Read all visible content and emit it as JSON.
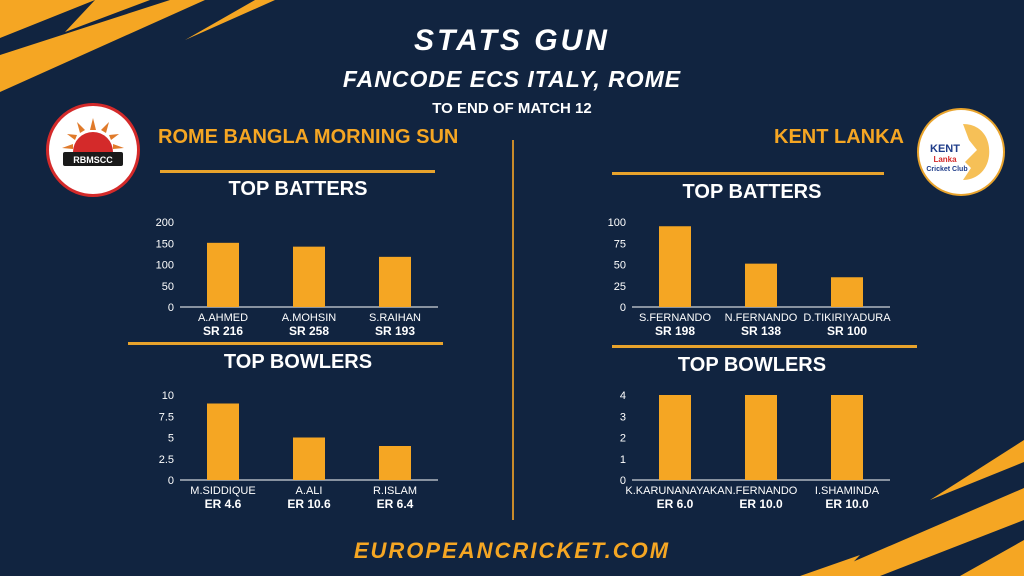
{
  "header": {
    "title": "STATS GUN",
    "subtitle": "FANCODE ECS ITALY, ROME",
    "note": "TO END OF MATCH 12"
  },
  "teams": {
    "left": {
      "name": "ROME BANGLA MORNING SUN",
      "logo_text": "RBMSCC"
    },
    "right": {
      "name": "KENT LANKA",
      "logo_text": {
        "line1": "KENT",
        "line2": "Lanka",
        "line3": "Cricket Club"
      }
    }
  },
  "sections": {
    "batters": "TOP BATTERS",
    "bowlers": "TOP BOWLERS"
  },
  "footer": "EUROPEANCRICKET.COM",
  "colors": {
    "background": "#112440",
    "accent": "#f5a623",
    "bar": "#f5a623",
    "text": "#ffffff"
  },
  "chart_data": [
    {
      "type": "bar",
      "title": "TOP BATTERS",
      "team": "ROME BANGLA MORNING SUN",
      "categories": [
        "A.AHMED",
        "A.MOHSIN",
        "S.RAIHAN"
      ],
      "values": [
        151,
        142,
        118
      ],
      "sublabels": [
        "SR 216",
        "SR 258",
        "SR 193"
      ],
      "yticks": [
        "0",
        "50",
        "100",
        "150",
        "200"
      ],
      "ylim": [
        0,
        200
      ]
    },
    {
      "type": "bar",
      "title": "TOP BOWLERS",
      "team": "ROME BANGLA MORNING SUN",
      "categories": [
        "M.SIDDIQUE",
        "A.ALI",
        "R.ISLAM"
      ],
      "values": [
        9,
        5,
        4
      ],
      "sublabels": [
        "ER 4.6",
        "ER 10.6",
        "ER 6.4"
      ],
      "yticks": [
        "0",
        "2.5",
        "5",
        "7.5",
        "10"
      ],
      "ylim": [
        0,
        10
      ]
    },
    {
      "type": "bar",
      "title": "TOP BATTERS",
      "team": "KENT LANKA",
      "categories": [
        "S.FERNANDO",
        "N.FERNANDO",
        "D.TIKIRIYADURA"
      ],
      "values": [
        95,
        51,
        35
      ],
      "sublabels": [
        "SR 198",
        "SR 138",
        "SR 100"
      ],
      "yticks": [
        "0",
        "25",
        "50",
        "75",
        "100"
      ],
      "ylim": [
        0,
        100
      ]
    },
    {
      "type": "bar",
      "title": "TOP BOWLERS",
      "team": "KENT LANKA",
      "categories": [
        "K.KARUNANAYAKA",
        "N.FERNANDO",
        "I.SHAMINDA"
      ],
      "values": [
        4,
        4,
        4
      ],
      "sublabels": [
        "ER 6.0",
        "ER 10.0",
        "ER 10.0"
      ],
      "yticks": [
        "0",
        "1",
        "2",
        "3",
        "4"
      ],
      "ylim": [
        0,
        4
      ]
    }
  ]
}
